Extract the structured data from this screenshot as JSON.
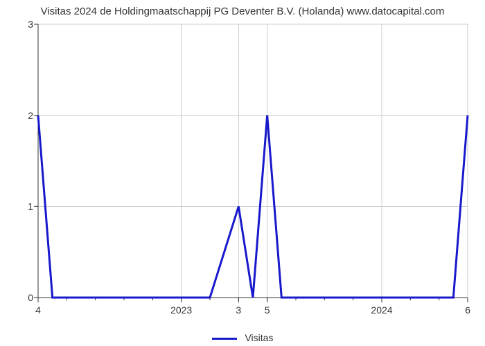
{
  "chart": {
    "type": "line",
    "title": "Visitas 2024 de Holdingmaatschappij PG Deventer B.V. (Holanda) www.datocapital.com",
    "title_fontsize": 15,
    "title_color": "#333333",
    "background_color": "#ffffff",
    "plot_area_color": "#ffffff",
    "grid_color": "#cccccc",
    "axis_color": "#333333",
    "x": {
      "min": 0,
      "max": 15,
      "ticks_major": [
        {
          "pos": 0,
          "label": "4"
        },
        {
          "pos": 5,
          "label": "2023"
        },
        {
          "pos": 7,
          "label": "3"
        },
        {
          "pos": 8,
          "label": "5"
        },
        {
          "pos": 12,
          "label": "2024"
        },
        {
          "pos": 15,
          "label": "6"
        }
      ],
      "ticks_minor_step": 1
    },
    "y": {
      "min": 0,
      "max": 3,
      "ticks": [
        0,
        1,
        2,
        3
      ]
    },
    "series": {
      "name": "Visitas",
      "color": "#1818cc",
      "linewidth": 3,
      "points": [
        {
          "x": 0,
          "y": 2
        },
        {
          "x": 0.5,
          "y": 0
        },
        {
          "x": 6,
          "y": 0
        },
        {
          "x": 7,
          "y": 1
        },
        {
          "x": 7.5,
          "y": 0
        },
        {
          "x": 8,
          "y": 2
        },
        {
          "x": 8.5,
          "y": 0
        },
        {
          "x": 14.5,
          "y": 0
        },
        {
          "x": 15,
          "y": 2
        }
      ]
    },
    "legend": {
      "label": "Visitas",
      "fontsize": 14
    }
  }
}
